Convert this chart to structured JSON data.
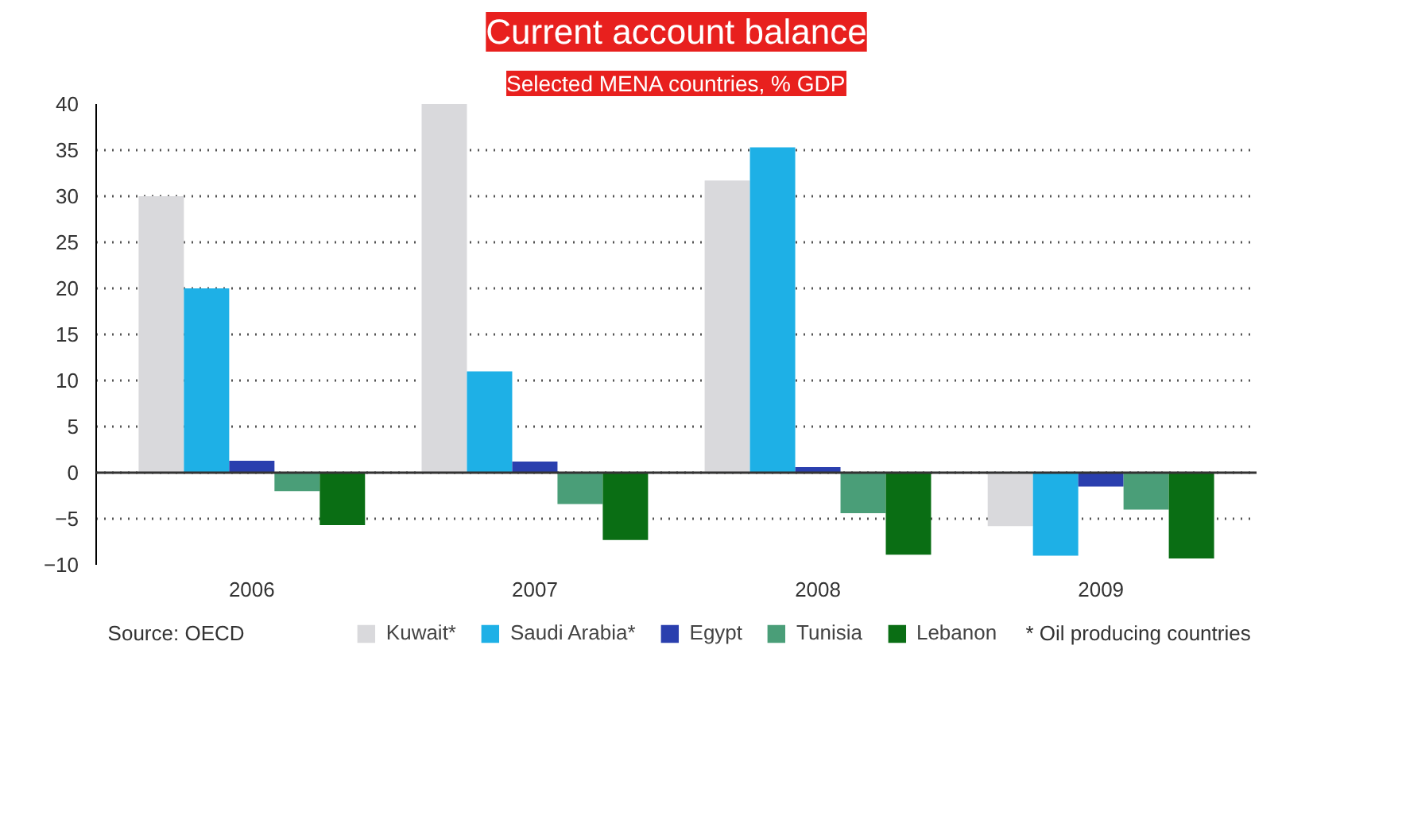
{
  "chart_data": {
    "type": "bar",
    "title": "Current account balance",
    "subtitle": "Selected MENA countries, % GDP",
    "categories": [
      "2006",
      "2007",
      "2008",
      "2009"
    ],
    "series": [
      {
        "name": "Kuwait*",
        "color": "#d9d9dc",
        "values": [
          30,
          40,
          31.7,
          -5.8
        ]
      },
      {
        "name": "Saudi Arabia*",
        "color": "#1eb0e6",
        "values": [
          20,
          11,
          35.3,
          -9
        ]
      },
      {
        "name": "Egypt",
        "color": "#2a3fae",
        "values": [
          1.3,
          1.2,
          0.6,
          -1.5
        ]
      },
      {
        "name": "Tunisia",
        "color": "#4a9e78",
        "values": [
          -2,
          -3.4,
          -4.4,
          -4
        ]
      },
      {
        "name": "Lebanon",
        "color": "#0a6e14",
        "values": [
          -5.7,
          -7.3,
          -8.9,
          -9.3
        ]
      }
    ],
    "ylim": [
      -10,
      40
    ],
    "yticks": [
      -10,
      -5,
      0,
      5,
      10,
      15,
      20,
      25,
      30,
      35,
      40
    ],
    "grid": "y",
    "legend": "bottom",
    "annotations": [
      "Source: OECD",
      "* Oil producing countries"
    ]
  }
}
